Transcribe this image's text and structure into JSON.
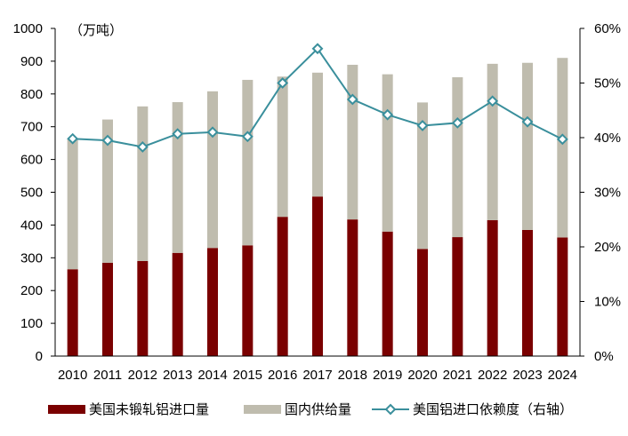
{
  "chart_data": {
    "type": "bar",
    "unit_label": "（万吨）",
    "categories": [
      "2010",
      "2011",
      "2012",
      "2013",
      "2014",
      "2015",
      "2016",
      "2017",
      "2018",
      "2019",
      "2020",
      "2021",
      "2022",
      "2023",
      "2024"
    ],
    "series": [
      {
        "name": "美国未锻轧铝进口量",
        "kind": "stacked-bar",
        "axis": "left",
        "color": "#7a0000",
        "values": [
          265,
          285,
          290,
          315,
          330,
          338,
          425,
          487,
          417,
          380,
          327,
          363,
          415,
          385,
          362
        ]
      },
      {
        "name": "国内供给量",
        "kind": "stacked-bar",
        "axis": "left",
        "color": "#bfbcae",
        "values": [
          400,
          437,
          472,
          460,
          478,
          505,
          428,
          378,
          472,
          480,
          447,
          488,
          477,
          510,
          548
        ]
      },
      {
        "name": "美国铝进口依赖度（右轴）",
        "kind": "line",
        "axis": "right",
        "color": "#3a8f9c",
        "values": [
          39.8,
          39.5,
          38.3,
          40.7,
          41.0,
          40.2,
          50.0,
          56.3,
          47.0,
          44.2,
          42.2,
          42.7,
          46.7,
          42.9,
          39.7
        ]
      }
    ],
    "y_left": {
      "min": 0,
      "max": 1000,
      "ticks": [
        "0",
        "100",
        "200",
        "300",
        "400",
        "500",
        "600",
        "700",
        "800",
        "900",
        "1000"
      ]
    },
    "y_right": {
      "min": 0,
      "max": 60,
      "ticks": [
        "0%",
        "10%",
        "20%",
        "30%",
        "40%",
        "50%",
        "60%"
      ]
    },
    "grid": false,
    "legend_position": "bottom"
  }
}
